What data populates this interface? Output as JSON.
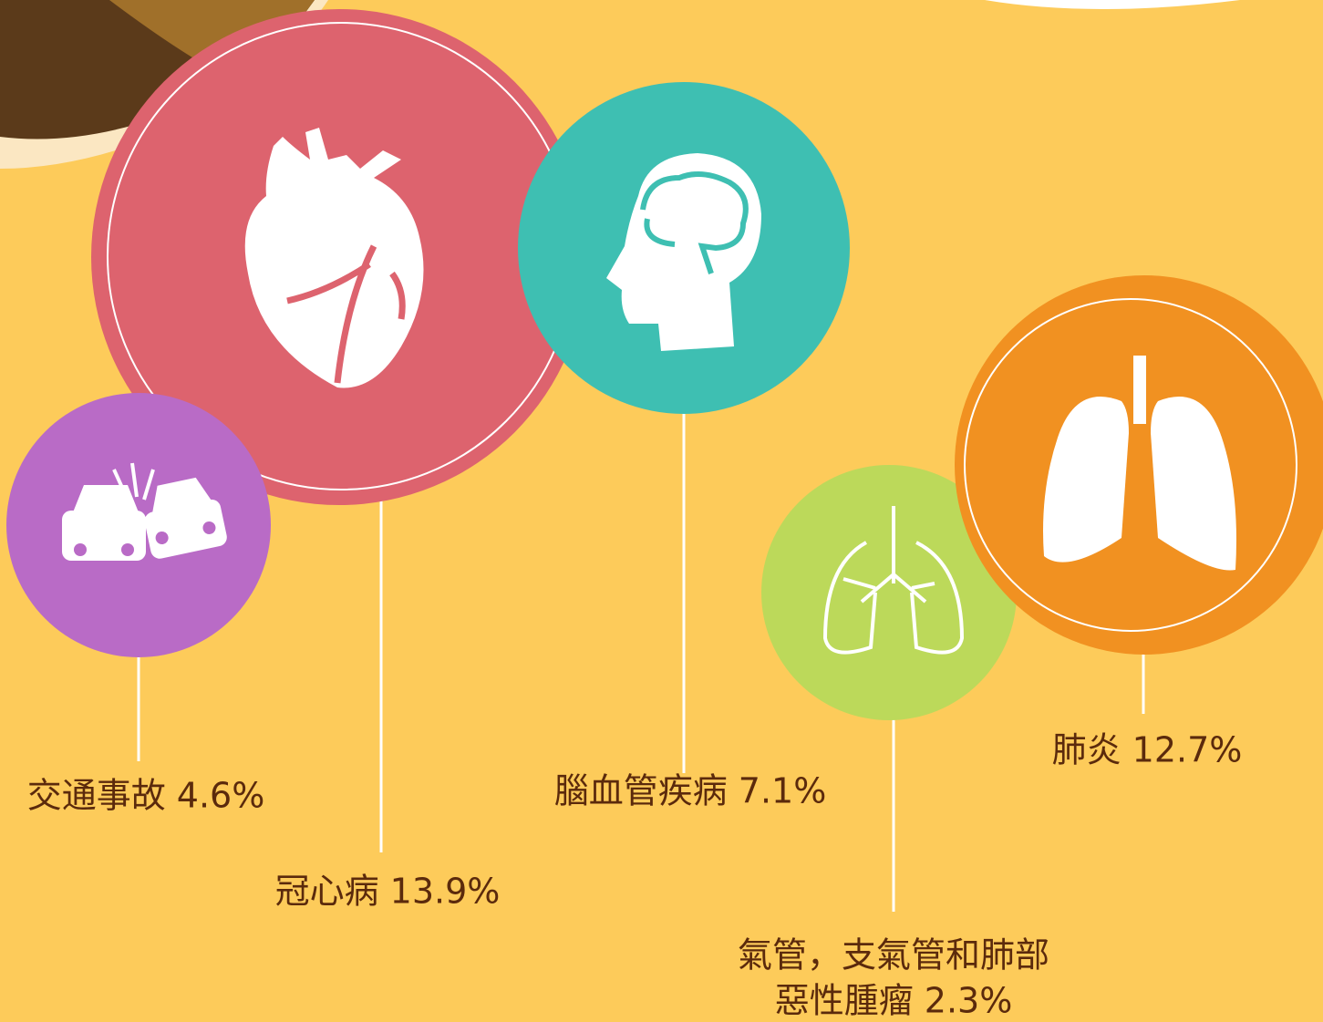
{
  "items": [
    {
      "label": [
        "交通事故 4.6%"
      ]
    },
    {
      "label": [
        "冠心病 13.9%"
      ]
    },
    {
      "label": [
        "腦血管疾病 7.1%"
      ]
    },
    {
      "label": [
        "氣管，支氣管和肺部",
        "惡性腫瘤 2.3%"
      ]
    },
    {
      "label": [
        "肺炎 12.7%"
      ]
    }
  ]
}
